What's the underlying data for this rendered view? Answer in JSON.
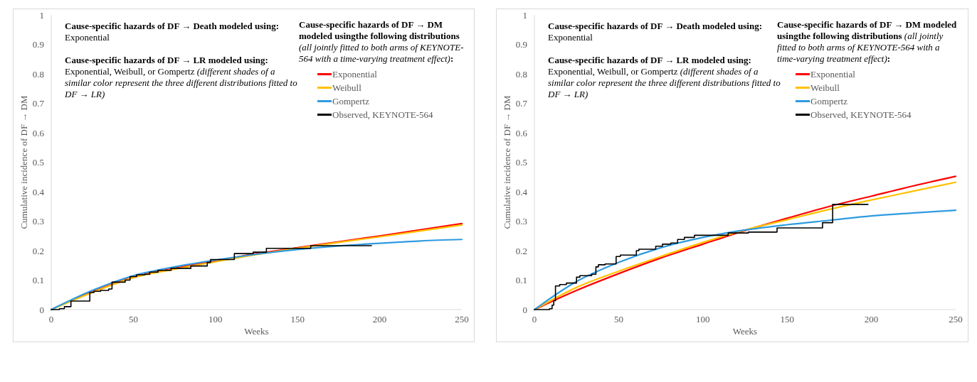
{
  "chart_data": [
    {
      "type": "line",
      "xlabel": "Weeks",
      "ylabel": "Cumulative incidence of DF → DM",
      "xlim": [
        0,
        250
      ],
      "ylim": [
        0,
        1
      ],
      "xticks": [
        0,
        50,
        100,
        150,
        200,
        250
      ],
      "yticks": [
        0,
        0.1,
        0.2,
        0.3,
        0.4,
        0.5,
        0.6,
        0.7,
        0.8,
        0.9,
        1
      ],
      "legend": "top right",
      "legend_title": "Cause-specific hazards of DF → DM modeled usingthe following distributions (all jointly fitted to both arms of KEYNOTE-564 with a time-varying treatment effect):",
      "annotations": [
        "Cause-specific hazards of DF → Death modeled using:",
        "Exponential",
        "Cause-specific hazards of DF → LR modeled using:",
        "Exponential, Weibull, or Gompertz",
        "(different shades of a similar color represent the three different distributions fitted to DF → LR)"
      ],
      "series": [
        {
          "name": "Exponential",
          "type": "line",
          "color": "#ff0000",
          "x": [
            0,
            25,
            50,
            75,
            100,
            125,
            150,
            175,
            200,
            225,
            250
          ],
          "values": [
            0,
            0.06,
            0.11,
            0.14,
            0.165,
            0.19,
            0.21,
            0.23,
            0.25,
            0.271,
            0.292
          ]
        },
        {
          "name": "Weibull",
          "type": "line",
          "color": "#ffc000",
          "x": [
            0,
            25,
            50,
            75,
            100,
            125,
            150,
            175,
            200,
            225,
            250
          ],
          "values": [
            0,
            0.058,
            0.108,
            0.137,
            0.162,
            0.187,
            0.208,
            0.228,
            0.247,
            0.267,
            0.287
          ]
        },
        {
          "name": "Gompertz",
          "type": "line",
          "color": "#2e9be0",
          "x": [
            0,
            25,
            50,
            75,
            100,
            125,
            150,
            175,
            200,
            225,
            250
          ],
          "values": [
            0,
            0.065,
            0.115,
            0.145,
            0.168,
            0.188,
            0.204,
            0.216,
            0.225,
            0.233,
            0.238
          ]
        },
        {
          "name": "Observed, KEYNOTE-564",
          "type": "step",
          "color": "#000000",
          "x": [
            0,
            5,
            8,
            12,
            23.5,
            26,
            30,
            35,
            37,
            45,
            48,
            52,
            57,
            60,
            65,
            73,
            85,
            95,
            97,
            111.5,
            123,
            131,
            158,
            195
          ],
          "values": [
            0,
            0.003,
            0.01,
            0.029,
            0.058,
            0.062,
            0.065,
            0.07,
            0.093,
            0.1,
            0.112,
            0.118,
            0.12,
            0.127,
            0.133,
            0.14,
            0.148,
            0.16,
            0.17,
            0.19,
            0.195,
            0.208,
            0.217,
            0.217
          ]
        }
      ]
    },
    {
      "type": "line",
      "xlabel": "Weeks",
      "ylabel": "Cumulative incidence of DF → DM",
      "xlim": [
        0,
        250
      ],
      "ylim": [
        0,
        1
      ],
      "xticks": [
        0,
        50,
        100,
        150,
        200,
        250
      ],
      "yticks": [
        0,
        0.1,
        0.2,
        0.3,
        0.4,
        0.5,
        0.6,
        0.7,
        0.8,
        0.9,
        1
      ],
      "legend": "top right",
      "legend_title": "Cause-specific hazards of DF → DM modeled usingthe following distributions (all jointly fitted to both arms of KEYNOTE-564 with a time-varying treatment effect):",
      "annotations": [
        "Cause-specific hazards of DF → Death modeled using:",
        "Exponential",
        "Cause-specific hazards of DF → LR modeled using:",
        "Exponential, Weibull, or Gompertz",
        "(different shades of a similar color represent the three different distributions fitted to DF → LR)"
      ],
      "series": [
        {
          "name": "Exponential",
          "type": "line",
          "color": "#ff0000",
          "x": [
            0,
            25,
            50,
            75,
            100,
            125,
            150,
            175,
            200,
            225,
            250
          ],
          "values": [
            0,
            0.065,
            0.122,
            0.175,
            0.222,
            0.268,
            0.31,
            0.35,
            0.385,
            0.42,
            0.452
          ]
        },
        {
          "name": "Weibull",
          "type": "line",
          "color": "#ffc000",
          "x": [
            0,
            25,
            50,
            75,
            100,
            125,
            150,
            175,
            200,
            225,
            250
          ],
          "values": [
            0,
            0.075,
            0.13,
            0.18,
            0.228,
            0.27,
            0.305,
            0.34,
            0.372,
            0.402,
            0.432
          ]
        },
        {
          "name": "Gompertz",
          "type": "line",
          "color": "#2e9be0",
          "x": [
            0,
            25,
            50,
            75,
            100,
            125,
            150,
            175,
            200,
            225,
            250
          ],
          "values": [
            0,
            0.095,
            0.16,
            0.21,
            0.245,
            0.27,
            0.288,
            0.303,
            0.318,
            0.328,
            0.337
          ]
        },
        {
          "name": "Observed, KEYNOTE-564",
          "type": "step",
          "color": "#000000",
          "x": [
            0,
            9,
            10.5,
            11.5,
            12.5,
            15,
            19,
            25,
            27,
            34,
            36.5,
            38,
            42,
            48.5,
            51,
            60.5,
            62,
            72,
            76,
            81,
            85,
            89,
            95,
            115,
            127,
            144,
            171,
            177,
            198
          ],
          "values": [
            0,
            0.003,
            0.015,
            0.03,
            0.08,
            0.085,
            0.09,
            0.11,
            0.115,
            0.12,
            0.145,
            0.152,
            0.155,
            0.18,
            0.185,
            0.2,
            0.205,
            0.215,
            0.222,
            0.226,
            0.238,
            0.245,
            0.252,
            0.26,
            0.263,
            0.277,
            0.295,
            0.357,
            0.357
          ]
        }
      ]
    }
  ]
}
